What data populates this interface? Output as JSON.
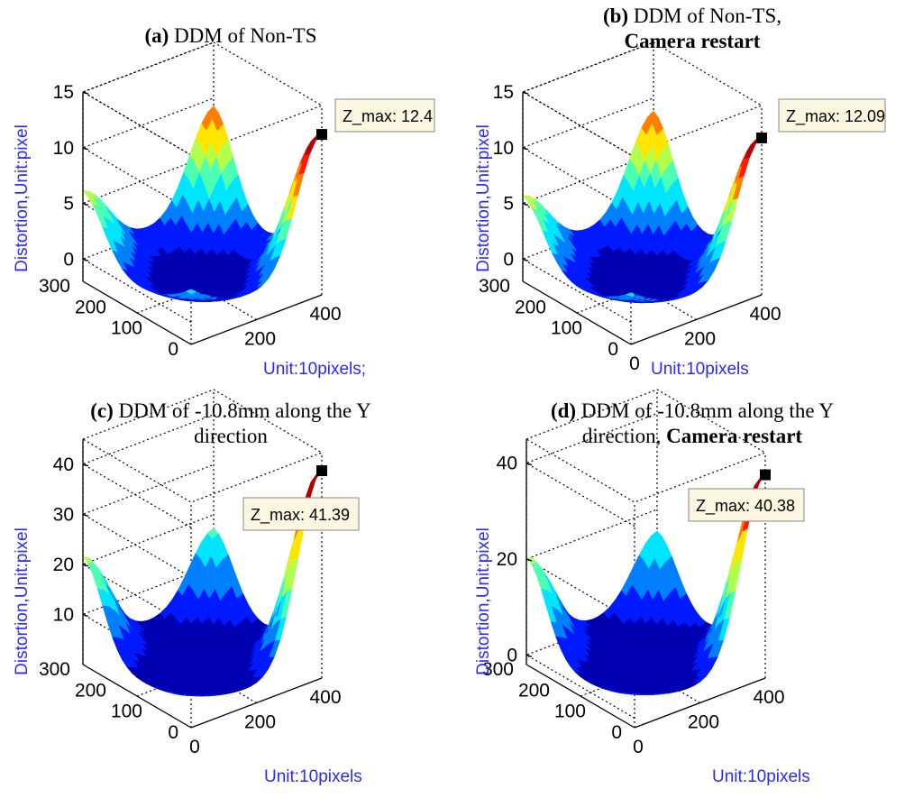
{
  "chart_data": [
    {
      "type": "surface3d",
      "title_bold": "(a)",
      "title_text": " DDM of Non-TS",
      "title_line2": "",
      "ylabel": "Distortion,Unit:pixel",
      "xlabel": "Unit:10pixels;",
      "z_ticks": [
        "0",
        "5",
        "10",
        "15"
      ],
      "y_ticks": [
        "0",
        "100",
        "200",
        "300"
      ],
      "x_ticks": [
        "200",
        "400"
      ],
      "zlim": [
        -2,
        15
      ],
      "datatip": "Z_max: 12.4",
      "z_max": 12.4,
      "corner_peaks": {
        "front": 12.4,
        "right": 12.0,
        "left": 7.5,
        "middle": 6.0
      }
    },
    {
      "type": "surface3d",
      "title_bold": "(b)",
      "title_text": " DDM of Non-TS,",
      "title_line2": "Camera restart",
      "ylabel": "Distortion,Unit:pixel",
      "xlabel": "Unit:10pixels",
      "z_ticks": [
        "0",
        "5",
        "10",
        "15"
      ],
      "y_ticks": [
        "0",
        "100",
        "200",
        "300"
      ],
      "x_ticks": [
        "0",
        "200",
        "400"
      ],
      "zlim": [
        -2,
        15
      ],
      "datatip": "Z_max: 12.09",
      "z_max": 12.09,
      "corner_peaks": {
        "front": 12.09,
        "right": 11.5,
        "left": 7.0,
        "middle": 5.5
      }
    },
    {
      "type": "surface3d",
      "title_bold": "(c)",
      "title_text": " DDM of -10.8mm along the Y",
      "title_line2": "direction",
      "ylabel": "Distortion,Unit:pixel",
      "xlabel": "Unit:10pixels",
      "z_ticks": [
        "10",
        "20",
        "30",
        "40"
      ],
      "y_ticks": [
        "0",
        "100",
        "200",
        "300"
      ],
      "x_ticks": [
        "0",
        "200",
        "400"
      ],
      "zlim": [
        0,
        45
      ],
      "datatip": "Z_max: 41.39",
      "z_max": 41.39,
      "corner_peaks": {
        "front": 41.39,
        "right": 22,
        "left": 28,
        "middle": 10
      }
    },
    {
      "type": "surface3d",
      "title_bold": "(d)",
      "title_text": " DDM of -10.8mm along the Y",
      "title_line2": "direction, ",
      "title_line2_bold": "Camera restart",
      "ylabel": "Distortion,Unit:pixel",
      "xlabel": "Unit:10pixels",
      "z_ticks": [
        "0",
        "20",
        "40"
      ],
      "y_ticks": [
        "0",
        "100",
        "200",
        "300"
      ],
      "x_ticks": [
        "0",
        "200",
        "400"
      ],
      "zlim": [
        -2,
        45
      ],
      "datatip": "Z_max: 40.38",
      "z_max": 40.38,
      "corner_peaks": {
        "front": 40.38,
        "right": 20,
        "left": 27,
        "middle": 9
      }
    }
  ]
}
